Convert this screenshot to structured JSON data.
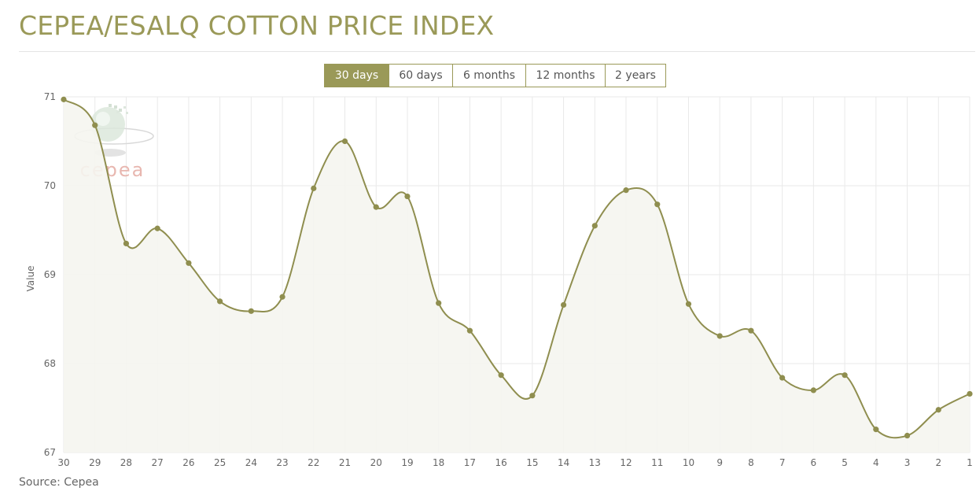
{
  "page": {
    "title": "CEPEA/ESALQ COTTON PRICE INDEX",
    "source": "Source: Cepea"
  },
  "range_tabs": [
    {
      "label": "30 days",
      "active": true
    },
    {
      "label": "60 days",
      "active": false
    },
    {
      "label": "6 months",
      "active": false
    },
    {
      "label": "12 months",
      "active": false
    },
    {
      "label": "2 years",
      "active": false
    }
  ],
  "watermark": {
    "text": "cepea"
  },
  "colors": {
    "accent": "#9a9958",
    "line": "#8f8e4f",
    "area_fill": "#f5f5f0",
    "grid": "#e9e9e9",
    "watermark_text": "#e8b7b0"
  },
  "chart_data": {
    "type": "line",
    "title": "",
    "xlabel": "",
    "ylabel": "Value",
    "ylim": [
      67,
      71
    ],
    "yticks": [
      67,
      68,
      69,
      70,
      71
    ],
    "grid": true,
    "smooth": true,
    "area_fill": true,
    "categories": [
      "30",
      "29",
      "28",
      "27",
      "26",
      "25",
      "24",
      "23",
      "22",
      "21",
      "20",
      "19",
      "18",
      "17",
      "16",
      "15",
      "14",
      "13",
      "12",
      "11",
      "10",
      "9",
      "8",
      "7",
      "6",
      "5",
      "4",
      "3",
      "2",
      "1"
    ],
    "series": [
      {
        "values": [
          70.97,
          70.68,
          69.35,
          69.52,
          69.13,
          68.7,
          68.59,
          68.75,
          69.97,
          70.5,
          69.76,
          69.88,
          68.68,
          68.37,
          67.87,
          67.64,
          68.66,
          69.55,
          69.95,
          69.79,
          68.67,
          68.31,
          68.37,
          67.84,
          67.7,
          67.87,
          67.26,
          67.19,
          67.48,
          67.66
        ]
      }
    ]
  }
}
